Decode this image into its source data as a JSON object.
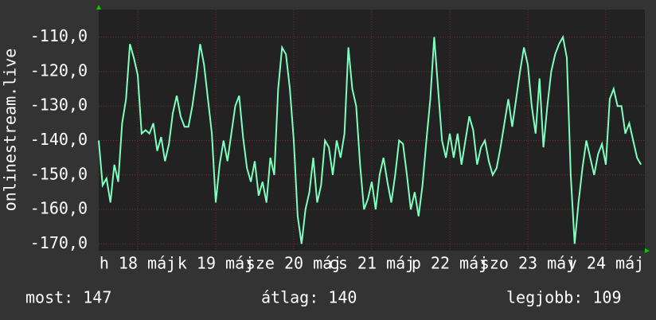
{
  "chart_data": {
    "type": "line",
    "y_label": "onlinestream.live",
    "x": [
      0,
      0.05,
      0.1,
      0.15,
      0.2,
      0.25,
      0.3,
      0.35,
      0.4,
      0.45,
      0.5,
      0.55,
      0.6,
      0.65,
      0.7,
      0.75,
      0.8,
      0.85,
      0.9,
      0.95,
      1,
      1.05,
      1.1,
      1.15,
      1.2,
      1.25,
      1.3,
      1.35,
      1.4,
      1.45,
      1.5,
      1.55,
      1.6,
      1.65,
      1.7,
      1.75,
      1.8,
      1.85,
      1.9,
      1.95,
      2,
      2.05,
      2.1,
      2.15,
      2.2,
      2.25,
      2.3,
      2.35,
      2.4,
      2.45,
      2.5,
      2.55,
      2.6,
      2.65,
      2.7,
      2.75,
      2.8,
      2.85,
      2.9,
      2.95,
      3,
      3.05,
      3.1,
      3.15,
      3.2,
      3.25,
      3.3,
      3.35,
      3.4,
      3.45,
      3.5,
      3.55,
      3.6,
      3.65,
      3.7,
      3.75,
      3.8,
      3.85,
      3.9,
      3.95,
      4,
      4.05,
      4.1,
      4.15,
      4.2,
      4.25,
      4.3,
      4.35,
      4.4,
      4.45,
      4.5,
      4.55,
      4.6,
      4.65,
      4.7,
      4.75,
      4.8,
      4.85,
      4.9,
      4.95,
      5,
      5.05,
      5.1,
      5.15,
      5.2,
      5.25,
      5.3,
      5.35,
      5.4,
      5.45,
      5.5,
      5.55,
      5.6,
      5.65,
      5.7,
      5.75,
      5.8,
      5.85,
      5.9,
      5.95,
      6,
      6.05,
      6.1,
      6.15,
      6.2,
      6.25,
      6.3,
      6.35,
      6.4,
      6.45,
      6.5,
      6.55,
      6.6,
      6.65,
      6.7,
      6.75,
      6.8,
      6.85,
      6.9,
      6.95
    ],
    "series": [
      {
        "name": "onlinestream.live",
        "color": "#7fffbf",
        "values": [
          -140,
          -153,
          -151,
          -158,
          -147,
          -152,
          -135,
          -128,
          -112,
          -116,
          -121,
          -138,
          -137,
          -138,
          -135,
          -143,
          -139,
          -146,
          -141,
          -132,
          -127,
          -133,
          -136,
          -136,
          -130,
          -122,
          -112,
          -118,
          -128,
          -138,
          -158,
          -147,
          -140,
          -146,
          -138,
          -130,
          -127,
          -139,
          -148,
          -152,
          -146,
          -156,
          -152,
          -158,
          -145,
          -150,
          -125,
          -113,
          -115,
          -125,
          -140,
          -162,
          -170,
          -160,
          -155,
          -145,
          -158,
          -153,
          -140,
          -142,
          -150,
          -140,
          -145,
          -138,
          -113,
          -125,
          -130,
          -147,
          -160,
          -157,
          -152,
          -160,
          -150,
          -145,
          -152,
          -158,
          -150,
          -140,
          -141,
          -150,
          -160,
          -155,
          -162,
          -153,
          -140,
          -128,
          -110,
          -125,
          -140,
          -145,
          -138,
          -145,
          -138,
          -147,
          -140,
          -133,
          -137,
          -147,
          -142,
          -140,
          -146,
          -150,
          -148,
          -142,
          -135,
          -128,
          -136,
          -128,
          -120,
          -113,
          -118,
          -130,
          -138,
          -122,
          -142,
          -130,
          -120,
          -115,
          -112,
          -110,
          -116,
          -150,
          -170,
          -158,
          -148,
          -140,
          -145,
          -150,
          -144,
          -141,
          -147,
          -128,
          -125,
          -130,
          -130,
          -138,
          -135,
          -140,
          -145,
          -147
        ]
      }
    ],
    "xlim": [
      0,
      7
    ],
    "xticks": [
      {
        "value": 0.5,
        "label": "h 18 máj"
      },
      {
        "value": 1.5,
        "label": "k 19 máj"
      },
      {
        "value": 2.5,
        "label": "sze 20 máj"
      },
      {
        "value": 3.5,
        "label": "cs 21 máj"
      },
      {
        "value": 4.5,
        "label": "p 22 máj"
      },
      {
        "value": 5.5,
        "label": "szo 23 máj"
      },
      {
        "value": 6.5,
        "label": "v 24 máj"
      }
    ],
    "ylim": [
      -172,
      -102
    ],
    "yticks": [
      {
        "value": -110,
        "label": "-110,0"
      },
      {
        "value": -120,
        "label": "-120,0"
      },
      {
        "value": -130,
        "label": "-130,0"
      },
      {
        "value": -140,
        "label": "-140,0"
      },
      {
        "value": -150,
        "label": "-150,0"
      },
      {
        "value": -160,
        "label": "-160,0"
      },
      {
        "value": -170,
        "label": "-170,0"
      }
    ],
    "grid": true,
    "footer": [
      "most: 147",
      "átlag: 140",
      "legjobb: 109"
    ]
  }
}
